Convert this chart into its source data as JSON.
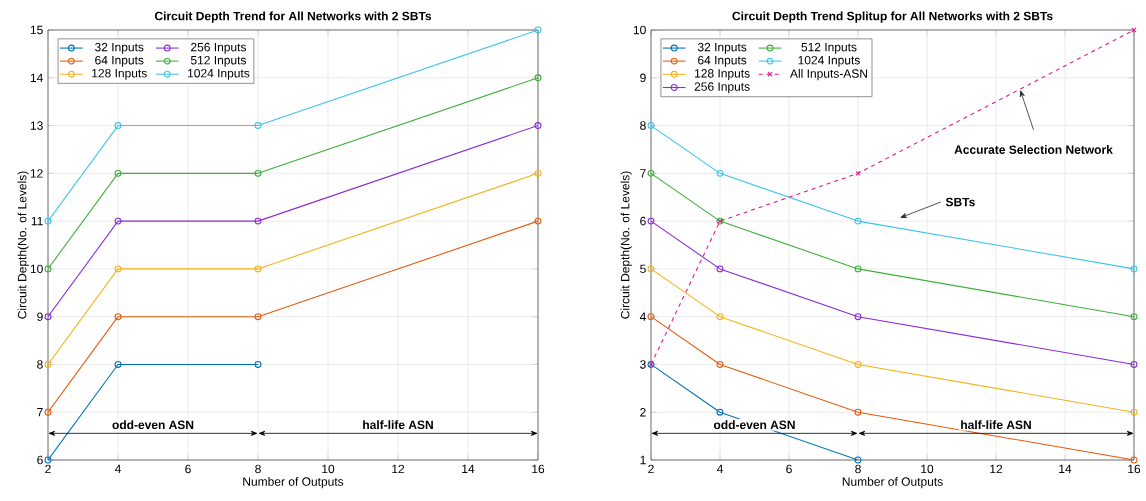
{
  "chart_data": [
    {
      "type": "line",
      "title": "Circuit Depth Trend for All Networks with 2 SBTs",
      "xlabel": "Number of Outputs",
      "ylabel": "Circuit Depth(No. of Levels)",
      "x": [
        2,
        4,
        8,
        16
      ],
      "xlim": [
        2,
        16
      ],
      "xticks": [
        2,
        4,
        6,
        8,
        10,
        12,
        14,
        16
      ],
      "ylim": [
        6,
        15
      ],
      "yticks": [
        6,
        7,
        8,
        9,
        10,
        11,
        12,
        13,
        14,
        15
      ],
      "grid": true,
      "legend": "top left",
      "marker": "circle",
      "line_style": "solid",
      "series": [
        {
          "name": "32 Inputs",
          "color": "#0072BD",
          "values": [
            6,
            8,
            8,
            null
          ]
        },
        {
          "name": "64 Inputs",
          "color": "#E8590C",
          "values": [
            7,
            9,
            9,
            11
          ]
        },
        {
          "name": "128 Inputs",
          "color": "#F5B21A",
          "values": [
            8,
            10,
            10,
            12
          ]
        },
        {
          "name": "256 Inputs",
          "color": "#8B2BD9",
          "values": [
            9,
            11,
            11,
            13
          ]
        },
        {
          "name": "512 Inputs",
          "color": "#3DB03A",
          "values": [
            10,
            12,
            12,
            14
          ]
        },
        {
          "name": "1024 Inputs",
          "color": "#3DC3EE",
          "values": [
            11,
            13,
            13,
            15
          ]
        }
      ],
      "annotations": [
        "odd-even ASN",
        "half-life ASN"
      ]
    },
    {
      "type": "line",
      "title": "Circuit Depth Trend Splitup for All Networks with 2 SBTs",
      "xlabel": "Number of Outputs",
      "ylabel": "Circuit Depth(No. of Levels)",
      "x": [
        2,
        4,
        8,
        16
      ],
      "xlim": [
        2,
        16
      ],
      "xticks": [
        2,
        4,
        6,
        8,
        10,
        12,
        14,
        16
      ],
      "ylim": [
        1,
        10
      ],
      "yticks": [
        1,
        2,
        3,
        4,
        5,
        6,
        7,
        8,
        9,
        10
      ],
      "grid": true,
      "legend": "top left",
      "marker": "circle",
      "line_style": "solid",
      "series": [
        {
          "name": "32 Inputs",
          "color": "#0072BD",
          "values": [
            3,
            2,
            1,
            null
          ]
        },
        {
          "name": "64 Inputs",
          "color": "#E8590C",
          "values": [
            4,
            3,
            2,
            1
          ]
        },
        {
          "name": "128 Inputs",
          "color": "#F5B21A",
          "values": [
            5,
            4,
            3,
            2
          ]
        },
        {
          "name": "256 Inputs",
          "color": "#8B2BD9",
          "values": [
            6,
            5,
            4,
            3
          ]
        },
        {
          "name": "512 Inputs",
          "color": "#3DB03A",
          "values": [
            7,
            6,
            5,
            4
          ]
        },
        {
          "name": "1024 Inputs",
          "color": "#3DC3EE",
          "values": [
            8,
            7,
            6,
            5
          ]
        },
        {
          "name": "All Inputs-ASN",
          "color": "#E0148C",
          "values": [
            3,
            6,
            7,
            10
          ],
          "marker": "cross",
          "line_style": "dashed"
        }
      ],
      "annotations": [
        "odd-even ASN",
        "half-life ASN",
        {
          "text": "Accurate Selection Network",
          "x": 12.7,
          "y": 8.75
        },
        "SBTs"
      ]
    }
  ]
}
